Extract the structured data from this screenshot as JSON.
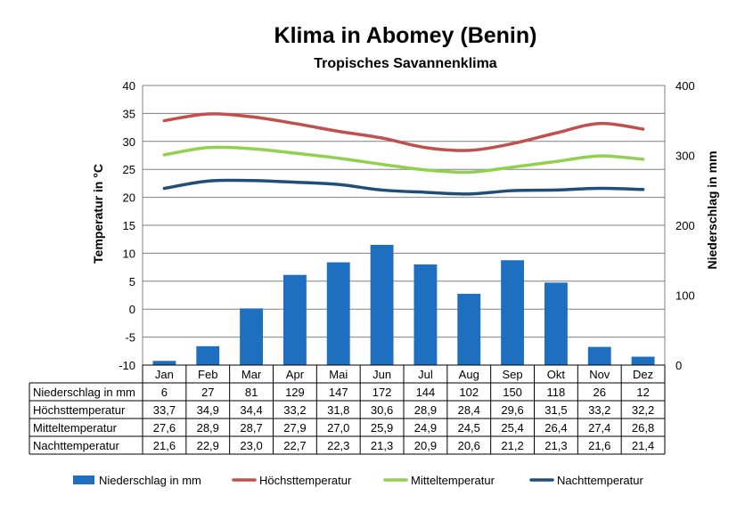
{
  "chart_data": {
    "type": "bar",
    "title": "Klima in Abomey (Benin)",
    "subtitle": "Tropisches Savannenklima",
    "ylabel_left": "Temperatur in °C",
    "ylabel_right": "Niederschlag in mm",
    "y_left_lim": [
      -10,
      40
    ],
    "y_left_ticks": [
      "40",
      "35",
      "30",
      "25",
      "20",
      "15",
      "10",
      "5",
      "0",
      "-5",
      "-10"
    ],
    "y_right_lim": [
      0,
      400
    ],
    "y_right_ticks": [
      "400",
      "300",
      "200",
      "100",
      "0"
    ],
    "grid": true,
    "legend_position": "bottom",
    "categories": [
      "Jan",
      "Feb",
      "Mar",
      "Apr",
      "Mai",
      "Jun",
      "Jul",
      "Aug",
      "Sep",
      "Okt",
      "Nov",
      "Dez"
    ],
    "series": [
      {
        "name": "Niederschlag in mm",
        "type": "bar",
        "axis": "right",
        "color": "#1f6fc0",
        "values": [
          6,
          27,
          81,
          129,
          147,
          172,
          144,
          102,
          150,
          118,
          26,
          12
        ],
        "labels": [
          "6",
          "27",
          "81",
          "129",
          "147",
          "172",
          "144",
          "102",
          "150",
          "118",
          "26",
          "12"
        ]
      },
      {
        "name": "Höchsttemperatur",
        "type": "line",
        "axis": "left",
        "color": "#c0504d",
        "values": [
          33.7,
          34.9,
          34.4,
          33.2,
          31.8,
          30.6,
          28.9,
          28.4,
          29.6,
          31.5,
          33.2,
          32.2
        ],
        "labels": [
          "33,7",
          "34,9",
          "34,4",
          "33,2",
          "31,8",
          "30,6",
          "28,9",
          "28,4",
          "29,6",
          "31,5",
          "33,2",
          "32,2"
        ]
      },
      {
        "name": "Mitteltemperatur",
        "type": "line",
        "axis": "left",
        "color": "#92d050",
        "values": [
          27.6,
          28.9,
          28.7,
          27.9,
          27.0,
          25.9,
          24.9,
          24.5,
          25.4,
          26.4,
          27.4,
          26.8
        ],
        "labels": [
          "27,6",
          "28,9",
          "28,7",
          "27,9",
          "27,0",
          "25,9",
          "24,9",
          "24,5",
          "25,4",
          "26,4",
          "27,4",
          "26,8"
        ]
      },
      {
        "name": "Nachttemperatur",
        "type": "line",
        "axis": "left",
        "color": "#1f4e79",
        "values": [
          21.6,
          22.9,
          23.0,
          22.7,
          22.3,
          21.3,
          20.9,
          20.6,
          21.2,
          21.3,
          21.6,
          21.4
        ],
        "labels": [
          "21,6",
          "22,9",
          "23,0",
          "22,7",
          "22,3",
          "21,3",
          "20,9",
          "20,6",
          "21,2",
          "21,3",
          "21,6",
          "21,4"
        ]
      }
    ]
  }
}
